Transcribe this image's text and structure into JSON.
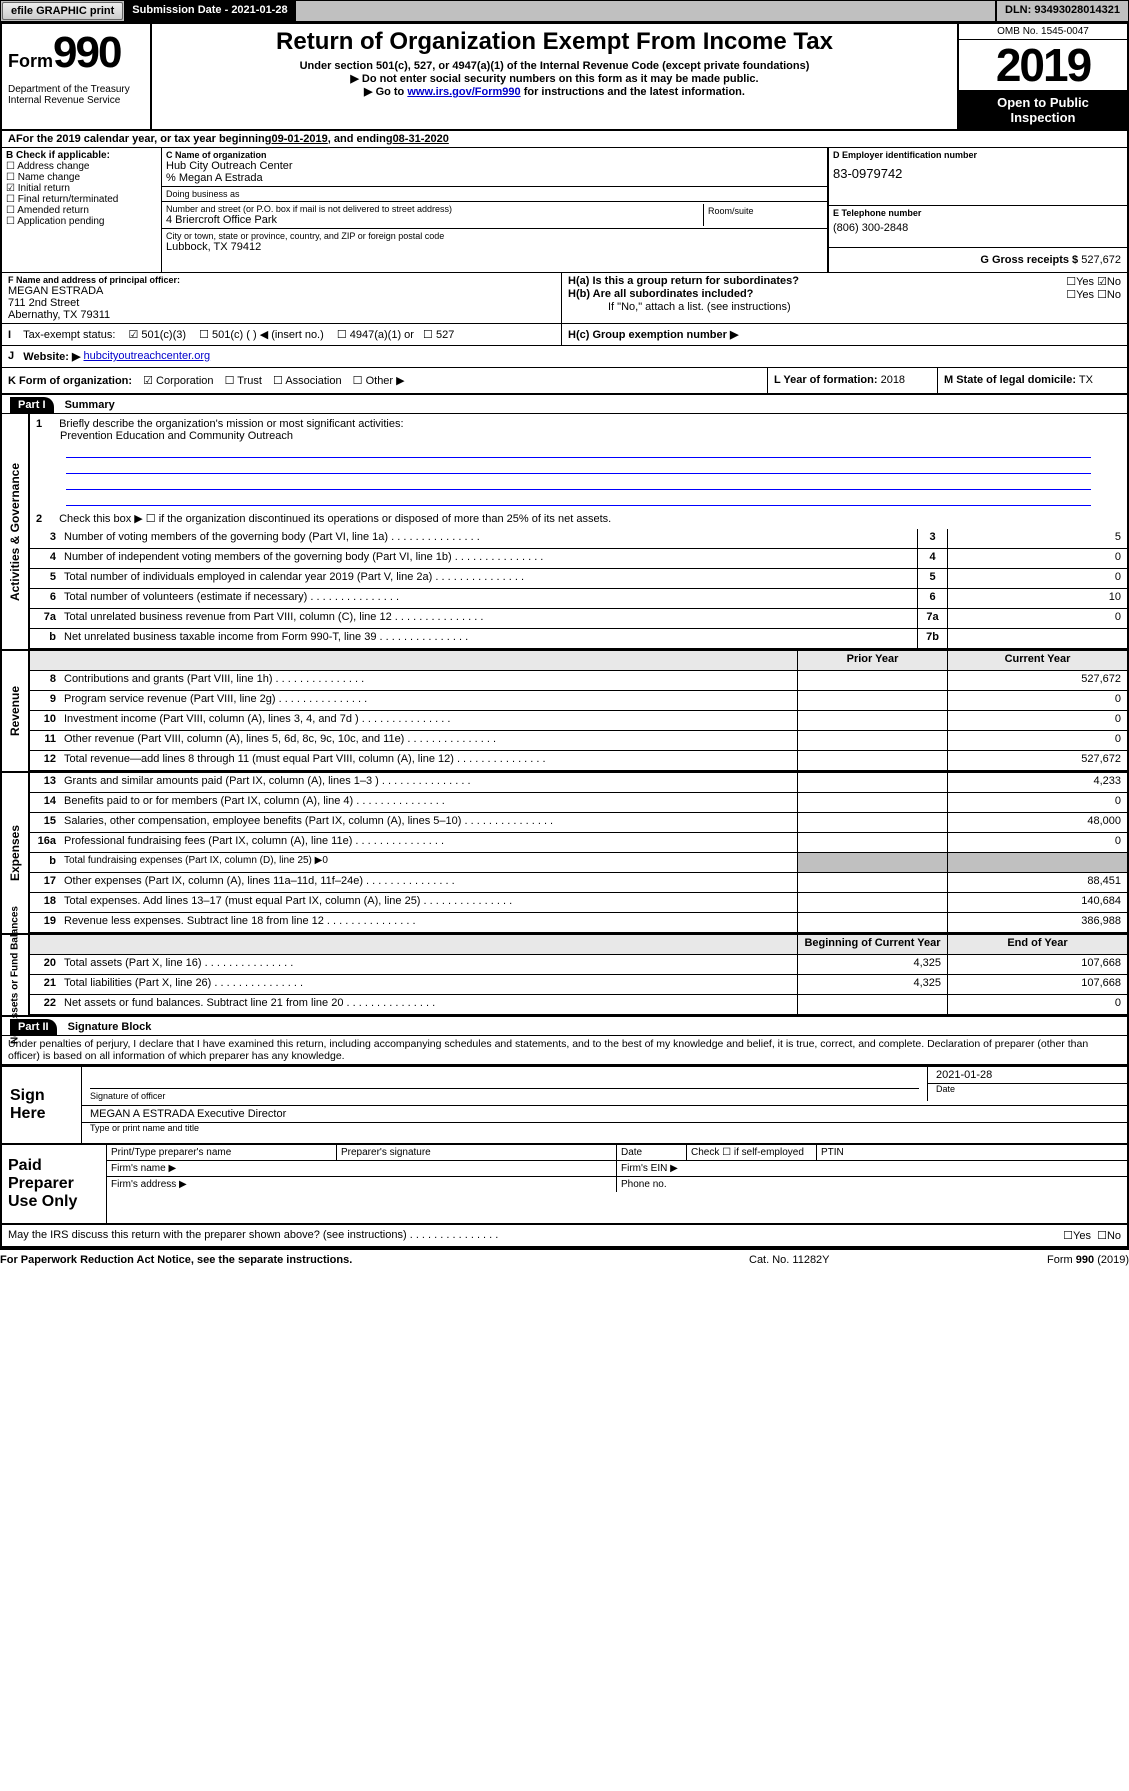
{
  "topbar": {
    "efile": "efile GRAPHIC print",
    "subdate_label": "Submission Date - 2021-01-28",
    "dln": "DLN: 93493028014321"
  },
  "header": {
    "form_label": "Form",
    "form_no": "990",
    "title": "Return of Organization Exempt From Income Tax",
    "sub1": "Under section 501(c), 527, or 4947(a)(1) of the Internal Revenue Code (except private foundations)",
    "sub2": "▶ Do not enter social security numbers on this form as it may be made public.",
    "sub3_a": "▶ Go to ",
    "sub3_link": "www.irs.gov/Form990",
    "sub3_b": " for instructions and the latest information.",
    "dept": "Department of the Treasury\nInternal Revenue Service",
    "omb": "OMB No. 1545-0047",
    "year": "2019",
    "inspect": "Open to Public Inspection"
  },
  "A": {
    "text_a": "For the 2019 calendar year, or tax year beginning ",
    "begin": "09-01-2019",
    "text_b": " , and ending ",
    "end": "08-31-2020"
  },
  "B": {
    "label": "B Check if applicable:",
    "addr_change": "Address change",
    "name_change": "Name change",
    "initial": "Initial return",
    "final": "Final return/terminated",
    "amended": "Amended return",
    "app_pending": "Application pending",
    "initial_checked": true
  },
  "C": {
    "name_label": "C Name of organization",
    "name": "Hub City Outreach Center",
    "care_of": "% Megan A Estrada",
    "dba_label": "Doing business as",
    "dba": "",
    "street_label": "Number and street (or P.O. box if mail is not delivered to street address)",
    "street": "4 Briercroft Office Park",
    "room_label": "Room/suite",
    "city_label": "City or town, state or province, country, and ZIP or foreign postal code",
    "city": "Lubbock, TX  79412"
  },
  "D": {
    "label": "D Employer identification number",
    "value": "83-0979742"
  },
  "E": {
    "label": "E Telephone number",
    "value": "(806) 300-2848"
  },
  "F": {
    "label": "F Name and address of principal officer:",
    "name": "MEGAN ESTRADA",
    "street": "711 2nd Street",
    "city": "Abernathy, TX  79311"
  },
  "G": {
    "label": "G Gross receipts $",
    "value": "527,672"
  },
  "H": {
    "a_label": "H(a)  Is this a group return for subordinates?",
    "a_no_checked": true,
    "b_label": "H(b)  Are all subordinates included?",
    "b_note": "If \"No,\" attach a list. (see instructions)",
    "c_label": "H(c)  Group exemption number ▶"
  },
  "I": {
    "label": "Tax-exempt status:",
    "c3_checked": true,
    "c3": "501(c)(3)",
    "cx": "501(c) (   ) ◀ (insert no.)",
    "a1": "4947(a)(1) or",
    "527": "527"
  },
  "J": {
    "label": "Website: ▶",
    "value": "hubcityoutreachcenter.org"
  },
  "K": {
    "label": "K Form of organization:",
    "corp": "Corporation",
    "corp_checked": true,
    "trust": "Trust",
    "assoc": "Association",
    "other": "Other ▶"
  },
  "L": {
    "label": "L Year of formation:",
    "value": "2018"
  },
  "M": {
    "label": "M State of legal domicile:",
    "value": "TX"
  },
  "part1": {
    "bar": "Part I",
    "title": "Summary",
    "q1": "Briefly describe the organization's mission or most significant activities:",
    "q1_val": "Prevention Education and Community Outreach",
    "q2": "Check this box ▶ ☐  if the organization discontinued its operations or disposed of more than 25% of its net assets.",
    "prior_label": "Prior Year",
    "curr_label": "Current Year",
    "begin_label": "Beginning of Current Year",
    "end_label": "End of Year",
    "sections": {
      "gov": "Activities & Governance",
      "rev": "Revenue",
      "exp": "Expenses",
      "net": "Net Assets or Fund Balances"
    },
    "rows_gov": [
      {
        "n": "3",
        "d": "Number of voting members of the governing body (Part VI, line 1a)",
        "box": "3",
        "v": "5"
      },
      {
        "n": "4",
        "d": "Number of independent voting members of the governing body (Part VI, line 1b)",
        "box": "4",
        "v": "0"
      },
      {
        "n": "5",
        "d": "Total number of individuals employed in calendar year 2019 (Part V, line 2a)",
        "box": "5",
        "v": "0"
      },
      {
        "n": "6",
        "d": "Total number of volunteers (estimate if necessary)",
        "box": "6",
        "v": "10"
      },
      {
        "n": "7a",
        "d": "Total unrelated business revenue from Part VIII, column (C), line 12",
        "box": "7a",
        "v": "0"
      },
      {
        "n": "b",
        "d": "Net unrelated business taxable income from Form 990-T, line 39",
        "box": "7b",
        "v": ""
      }
    ],
    "rows_rev": [
      {
        "n": "8",
        "d": "Contributions and grants (Part VIII, line 1h)",
        "p": "",
        "c": "527,672"
      },
      {
        "n": "9",
        "d": "Program service revenue (Part VIII, line 2g)",
        "p": "",
        "c": "0"
      },
      {
        "n": "10",
        "d": "Investment income (Part VIII, column (A), lines 3, 4, and 7d )",
        "p": "",
        "c": "0"
      },
      {
        "n": "11",
        "d": "Other revenue (Part VIII, column (A), lines 5, 6d, 8c, 9c, 10c, and 11e)",
        "p": "",
        "c": "0"
      },
      {
        "n": "12",
        "d": "Total revenue—add lines 8 through 11 (must equal Part VIII, column (A), line 12)",
        "p": "",
        "c": "527,672"
      }
    ],
    "rows_exp": [
      {
        "n": "13",
        "d": "Grants and similar amounts paid (Part IX, column (A), lines 1–3 )",
        "p": "",
        "c": "4,233"
      },
      {
        "n": "14",
        "d": "Benefits paid to or for members (Part IX, column (A), line 4)",
        "p": "",
        "c": "0"
      },
      {
        "n": "15",
        "d": "Salaries, other compensation, employee benefits (Part IX, column (A), lines 5–10)",
        "p": "",
        "c": "48,000"
      },
      {
        "n": "16a",
        "d": "Professional fundraising fees (Part IX, column (A), line 11e)",
        "p": "",
        "c": "0"
      },
      {
        "n": "b",
        "d": "Total fundraising expenses (Part IX, column (D), line 25) ▶0",
        "gray": true
      },
      {
        "n": "17",
        "d": "Other expenses (Part IX, column (A), lines 11a–11d, 11f–24e)",
        "p": "",
        "c": "88,451"
      },
      {
        "n": "18",
        "d": "Total expenses. Add lines 13–17 (must equal Part IX, column (A), line 25)",
        "p": "",
        "c": "140,684"
      },
      {
        "n": "19",
        "d": "Revenue less expenses. Subtract line 18 from line 12",
        "p": "",
        "c": "386,988"
      }
    ],
    "rows_net": [
      {
        "n": "20",
        "d": "Total assets (Part X, line 16)",
        "p": "4,325",
        "c": "107,668"
      },
      {
        "n": "21",
        "d": "Total liabilities (Part X, line 26)",
        "p": "4,325",
        "c": "107,668"
      },
      {
        "n": "22",
        "d": "Net assets or fund balances. Subtract line 21 from line 20",
        "p": "",
        "c": "0"
      }
    ]
  },
  "part2": {
    "bar": "Part II",
    "title": "Signature Block",
    "perjury": "Under penalties of perjury, I declare that I have examined this return, including accompanying schedules and statements, and to the best of my knowledge and belief, it is true, correct, and complete. Declaration of preparer (other than officer) is based on all information of which preparer has any knowledge.",
    "sign_here": "Sign Here",
    "sig_officer": "Signature of officer",
    "sig_date": "2021-01-28",
    "date_label": "Date",
    "name_title": "MEGAN A ESTRADA  Executive Director",
    "name_title_label": "Type or print name and title",
    "paid": "Paid Preparer Use Only",
    "prep_name_label": "Print/Type preparer's name",
    "prep_sig_label": "Preparer's signature",
    "prep_date_label": "Date",
    "check_self": "Check ☐ if self-employed",
    "ptin": "PTIN",
    "firm_name": "Firm's name    ▶",
    "firm_ein": "Firm's EIN ▶",
    "firm_addr": "Firm's address ▶",
    "phone": "Phone no."
  },
  "bottom": {
    "discuss": "May the IRS discuss this return with the preparer shown above? (see instructions)",
    "yes": "Yes",
    "no": "No",
    "pra": "For Paperwork Reduction Act Notice, see the separate instructions.",
    "cat": "Cat. No. 11282Y",
    "form": "Form 990 (2019)"
  }
}
